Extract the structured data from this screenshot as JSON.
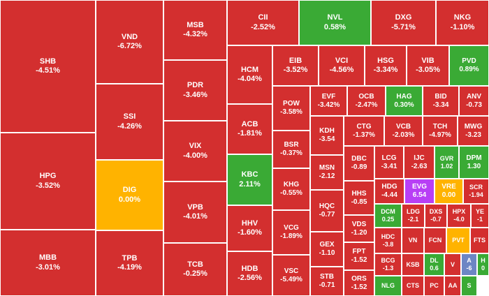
{
  "colors": {
    "down": "#d32f2f",
    "up": "#3aaa35",
    "ref": "#ffb300",
    "ceiling": "#b83ff5",
    "floor": "#6c86c4"
  },
  "tiles": [
    {
      "symbol": "SHB",
      "change": "-4.51%",
      "status": "down"
    },
    {
      "symbol": "HPG",
      "change": "-3.52%",
      "status": "down"
    },
    {
      "symbol": "MBB",
      "change": "-3.01%",
      "status": "down"
    },
    {
      "symbol": "VND",
      "change": "-6.72%",
      "status": "down"
    },
    {
      "symbol": "SSI",
      "change": "-4.26%",
      "status": "down"
    },
    {
      "symbol": "DIG",
      "change": "0.00%",
      "status": "ref"
    },
    {
      "symbol": "TPB",
      "change": "-4.19%",
      "status": "down"
    },
    {
      "symbol": "MSB",
      "change": "-4.32%",
      "status": "down"
    },
    {
      "symbol": "PDR",
      "change": "-3.46%",
      "status": "down"
    },
    {
      "symbol": "VIX",
      "change": "-4.00%",
      "status": "down"
    },
    {
      "symbol": "VPB",
      "change": "-4.01%",
      "status": "down"
    },
    {
      "symbol": "TCB",
      "change": "-0.25%",
      "status": "down"
    },
    {
      "symbol": "CII",
      "change": "-2.52%",
      "status": "down"
    },
    {
      "symbol": "NVL",
      "change": "0.58%",
      "status": "up"
    },
    {
      "symbol": "DXG",
      "change": "-5.71%",
      "status": "down"
    },
    {
      "symbol": "NKG",
      "change": "-1.10%",
      "status": "down"
    },
    {
      "symbol": "HCM",
      "change": "-4.04%",
      "status": "down"
    },
    {
      "symbol": "ACB",
      "change": "-1.81%",
      "status": "down"
    },
    {
      "symbol": "KBC",
      "change": "2.11%",
      "status": "up"
    },
    {
      "symbol": "HHV",
      "change": "-1.60%",
      "status": "down"
    },
    {
      "symbol": "HDB",
      "change": "-2.56%",
      "status": "down"
    },
    {
      "symbol": "EIB",
      "change": "-3.52%",
      "status": "down"
    },
    {
      "symbol": "VCI",
      "change": "-4.56%",
      "status": "down"
    },
    {
      "symbol": "HSG",
      "change": "-3.34%",
      "status": "down"
    },
    {
      "symbol": "VIB",
      "change": "-3.05%",
      "status": "down"
    },
    {
      "symbol": "PVD",
      "change": "0.89%",
      "status": "up"
    },
    {
      "symbol": "POW",
      "change": "-3.58%",
      "status": "down"
    },
    {
      "symbol": "BSR",
      "change": "-0.37%",
      "status": "down"
    },
    {
      "symbol": "KHG",
      "change": "-0.55%",
      "status": "down"
    },
    {
      "symbol": "VCG",
      "change": "-1.89%",
      "status": "down"
    },
    {
      "symbol": "VSC",
      "change": "-5.49%",
      "status": "down"
    },
    {
      "symbol": "EVF",
      "change": "-3.42%",
      "status": "down"
    },
    {
      "symbol": "OCB",
      "change": "-2.47%",
      "status": "down"
    },
    {
      "symbol": "HAG",
      "change": "0.30%",
      "status": "up"
    },
    {
      "symbol": "BID",
      "change": "-3.34",
      "status": "down"
    },
    {
      "symbol": "ANV",
      "change": "-0.73",
      "status": "down"
    },
    {
      "symbol": "KDH",
      "change": "-3.54",
      "status": "down"
    },
    {
      "symbol": "CTG",
      "change": "-1.37%",
      "status": "down"
    },
    {
      "symbol": "VCB",
      "change": "-2.03%",
      "status": "down"
    },
    {
      "symbol": "TCH",
      "change": "-4.97%",
      "status": "down"
    },
    {
      "symbol": "MWG",
      "change": "-3.23",
      "status": "down"
    },
    {
      "symbol": "MSN",
      "change": "-2.12",
      "status": "down"
    },
    {
      "symbol": "HQC",
      "change": "-0.77",
      "status": "down"
    },
    {
      "symbol": "GEX",
      "change": "-1.10",
      "status": "down"
    },
    {
      "symbol": "STB",
      "change": "-0.71",
      "status": "down"
    },
    {
      "symbol": "DBC",
      "change": "-0.89",
      "status": "down"
    },
    {
      "symbol": "HHS",
      "change": "-0.85",
      "status": "down"
    },
    {
      "symbol": "VDS",
      "change": "-1.20",
      "status": "down"
    },
    {
      "symbol": "FPT",
      "change": "-1.52",
      "status": "down"
    },
    {
      "symbol": "ORS",
      "change": "-1.52",
      "status": "down"
    },
    {
      "symbol": "LCG",
      "change": "-3.41",
      "status": "down"
    },
    {
      "symbol": "IJC",
      "change": "-2.63",
      "status": "down"
    },
    {
      "symbol": "GVR",
      "change": "1.02",
      "status": "up"
    },
    {
      "symbol": "DPM",
      "change": "1.30",
      "status": "up"
    },
    {
      "symbol": "HDG",
      "change": "-4.44",
      "status": "down"
    },
    {
      "symbol": "EVG",
      "change": "6.54",
      "status": "ceiling"
    },
    {
      "symbol": "VRE",
      "change": "0.00",
      "status": "ref"
    },
    {
      "symbol": "SCR",
      "change": "-1.94",
      "status": "down"
    },
    {
      "symbol": "DCM",
      "change": "0.25",
      "status": "up"
    },
    {
      "symbol": "LDG",
      "change": "-2.1",
      "status": "down"
    },
    {
      "symbol": "DXS",
      "change": "-0.7",
      "status": "down"
    },
    {
      "symbol": "HPX",
      "change": "-4.0",
      "status": "down"
    },
    {
      "symbol": "YE",
      "change": "-1",
      "status": "down"
    },
    {
      "symbol": "HDC",
      "change": "-3.8",
      "status": "down"
    },
    {
      "symbol": "VN",
      "change": "",
      "status": "down"
    },
    {
      "symbol": "FCN",
      "change": "",
      "status": "down"
    },
    {
      "symbol": "PVT",
      "change": "",
      "status": "ref"
    },
    {
      "symbol": "FTS",
      "change": "",
      "status": "down"
    },
    {
      "symbol": "BCG",
      "change": "-1.3",
      "status": "down"
    },
    {
      "symbol": "KSB",
      "change": "",
      "status": "down"
    },
    {
      "symbol": "DL",
      "change": "0.6",
      "status": "up"
    },
    {
      "symbol": "V",
      "change": "",
      "status": "down"
    },
    {
      "symbol": "A",
      "change": "-6",
      "status": "floor"
    },
    {
      "symbol": "H",
      "change": "0",
      "status": "up"
    },
    {
      "symbol": "NLG",
      "change": "",
      "status": "up"
    },
    {
      "symbol": "CTS",
      "change": "",
      "status": "down"
    },
    {
      "symbol": "PC",
      "change": "",
      "status": "down"
    },
    {
      "symbol": "AA",
      "change": "",
      "status": "down"
    },
    {
      "symbol": "S",
      "change": "",
      "status": "up"
    }
  ]
}
